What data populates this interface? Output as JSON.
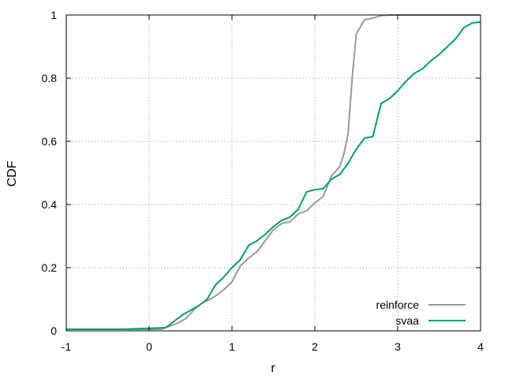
{
  "chart_data": {
    "type": "line",
    "title": "",
    "xlabel": "r",
    "ylabel": "CDF",
    "xlim": [
      -1,
      4
    ],
    "ylim": [
      0,
      1
    ],
    "xticks": [
      "-1",
      "0",
      "1",
      "2",
      "3",
      "4"
    ],
    "yticks": [
      "0",
      "0.2",
      "0.4",
      "0.6",
      "0.8",
      "1"
    ],
    "grid": true,
    "legend": "bottom-right",
    "series": [
      {
        "name": "reinforce",
        "color": "#999999",
        "x": [
          -1.0,
          0.15,
          0.25,
          0.35,
          0.45,
          0.55,
          0.65,
          0.7,
          0.8,
          0.9,
          1.0,
          1.1,
          1.2,
          1.3,
          1.4,
          1.5,
          1.6,
          1.7,
          1.8,
          1.9,
          2.0,
          2.1,
          2.2,
          2.3,
          2.35,
          2.4,
          2.45,
          2.5,
          2.6,
          2.7,
          2.8,
          2.9,
          4.0
        ],
        "y": [
          0.005,
          0.005,
          0.015,
          0.025,
          0.04,
          0.07,
          0.09,
          0.095,
          0.11,
          0.13,
          0.155,
          0.205,
          0.23,
          0.25,
          0.285,
          0.32,
          0.34,
          0.345,
          0.37,
          0.38,
          0.405,
          0.425,
          0.49,
          0.52,
          0.56,
          0.62,
          0.8,
          0.94,
          0.985,
          0.99,
          0.998,
          1.0,
          1.0
        ]
      },
      {
        "name": "svaa",
        "color": "#009e73",
        "x": [
          -1.0,
          -0.3,
          0.2,
          0.3,
          0.4,
          0.5,
          0.6,
          0.7,
          0.8,
          0.9,
          1.0,
          1.1,
          1.2,
          1.3,
          1.4,
          1.5,
          1.6,
          1.7,
          1.8,
          1.9,
          2.0,
          2.1,
          2.2,
          2.3,
          2.4,
          2.5,
          2.6,
          2.7,
          2.8,
          2.9,
          3.0,
          3.1,
          3.2,
          3.3,
          3.4,
          3.5,
          3.6,
          3.7,
          3.8,
          3.9,
          4.0
        ],
        "y": [
          0.005,
          0.005,
          0.01,
          0.03,
          0.05,
          0.065,
          0.08,
          0.1,
          0.145,
          0.17,
          0.2,
          0.225,
          0.27,
          0.285,
          0.305,
          0.33,
          0.35,
          0.36,
          0.385,
          0.44,
          0.447,
          0.45,
          0.48,
          0.495,
          0.53,
          0.575,
          0.61,
          0.615,
          0.72,
          0.735,
          0.76,
          0.79,
          0.815,
          0.83,
          0.855,
          0.875,
          0.9,
          0.925,
          0.96,
          0.975,
          0.978
        ]
      }
    ]
  }
}
